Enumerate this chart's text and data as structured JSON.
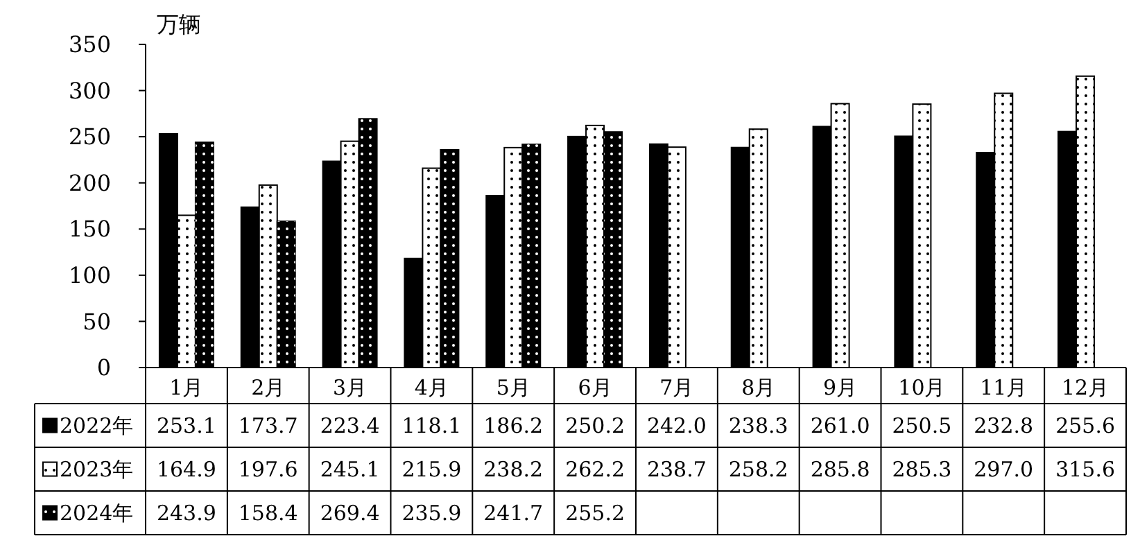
{
  "chart_data": {
    "type": "bar",
    "ylabel": "万辆",
    "categories": [
      "1月",
      "2月",
      "3月",
      "4月",
      "5月",
      "6月",
      "7月",
      "8月",
      "9月",
      "10月",
      "11月",
      "12月"
    ],
    "series": [
      {
        "name": "2022年",
        "color": "#000000",
        "values": [
          253.1,
          173.7,
          223.4,
          118.1,
          186.2,
          250.2,
          242.0,
          238.3,
          261.0,
          250.5,
          232.8,
          255.6
        ],
        "value_labels": [
          "253.1",
          "173.7",
          "223.4",
          "118.1",
          "186.2",
          "250.2",
          "242.0",
          "238.3",
          "261.0",
          "250.5",
          "232.8",
          "255.6"
        ]
      },
      {
        "name": "2023年",
        "color": "#ffffff",
        "values": [
          164.9,
          197.6,
          245.1,
          215.9,
          238.2,
          262.2,
          238.7,
          258.2,
          285.8,
          285.3,
          297.0,
          315.6
        ],
        "value_labels": [
          "164.9",
          "197.6",
          "245.1",
          "215.9",
          "238.2",
          "262.2",
          "238.7",
          "258.2",
          "285.8",
          "285.3",
          "297.0",
          "315.6"
        ]
      },
      {
        "name": "2024年",
        "color": "#000000",
        "values": [
          243.9,
          158.4,
          269.4,
          235.9,
          241.7,
          255.2,
          null,
          null,
          null,
          null,
          null,
          null
        ],
        "value_labels": [
          "243.9",
          "158.4",
          "269.4",
          "235.9",
          "241.7",
          "255.2",
          null,
          null,
          null,
          null,
          null,
          null
        ]
      }
    ],
    "ylim": [
      0,
      350
    ],
    "yticks": [
      0,
      50,
      100,
      150,
      200,
      250,
      300,
      350
    ],
    "grid": false,
    "legend": "bottom"
  }
}
